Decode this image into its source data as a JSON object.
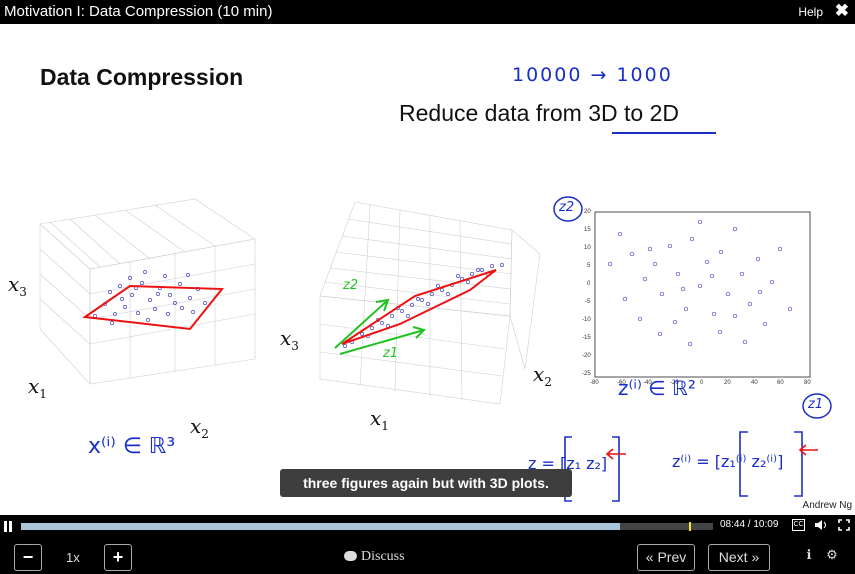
{
  "window": {
    "title": "Motivation I: Data Compression (10 min)",
    "help_label": "Help",
    "close_icon": "close-icon"
  },
  "slide": {
    "title": "Data Compression",
    "handwritten_top": "10000 → 1000",
    "subtitle": "Reduce data from 3D to 2D",
    "credit": "Andrew Ng",
    "fig1": {
      "ylabel": "x",
      "ylabel_sub": "3",
      "xlabel1": "x",
      "xlabel1_sub": "1",
      "xlabel2": "x",
      "xlabel2_sub": "2"
    },
    "fig2": {
      "ylabel": "x",
      "ylabel_sub": "3",
      "xlabel1": "x",
      "xlabel1_sub": "1",
      "xlabel2": "x",
      "xlabel2_sub": "2",
      "hw_z1": "z1",
      "hw_z2": "z2"
    },
    "fig3": {
      "hw_z2": "z2",
      "hw_z1": "z1"
    },
    "hw_x_in_r3": "x⁽ⁱ⁾ ∈ ℝ³",
    "hw_z_in_r2": "z⁽ⁱ⁾ ∈ ℝ²",
    "hw_z_vector": "z = [z₁ z₂]",
    "hw_zi_vector": "z⁽ⁱ⁾ = [z₁⁽ⁱ⁾ z₂⁽ⁱ⁾]"
  },
  "scatter": {
    "x_ticks": [
      "-80",
      "-60",
      "-40",
      "-20",
      "0",
      "20",
      "40",
      "60",
      "80"
    ],
    "y_ticks": [
      "20",
      "15",
      "10",
      "5",
      "0",
      "-5",
      "-10",
      "-15",
      "-20",
      "-25"
    ]
  },
  "caption": "three figures again but with 3D plots.",
  "player": {
    "played_fraction": 0.865,
    "buffered_fraction": 0.865,
    "marker_fraction": 0.965,
    "time_current": "08:44",
    "time_total": "10:09",
    "time_separator": " / ",
    "speed": "1x",
    "discuss_label": "Discuss",
    "prev_label": "« Prev",
    "next_label": "Next »",
    "minus_label": "−",
    "plus_label": "+",
    "cc_label": "CC"
  }
}
